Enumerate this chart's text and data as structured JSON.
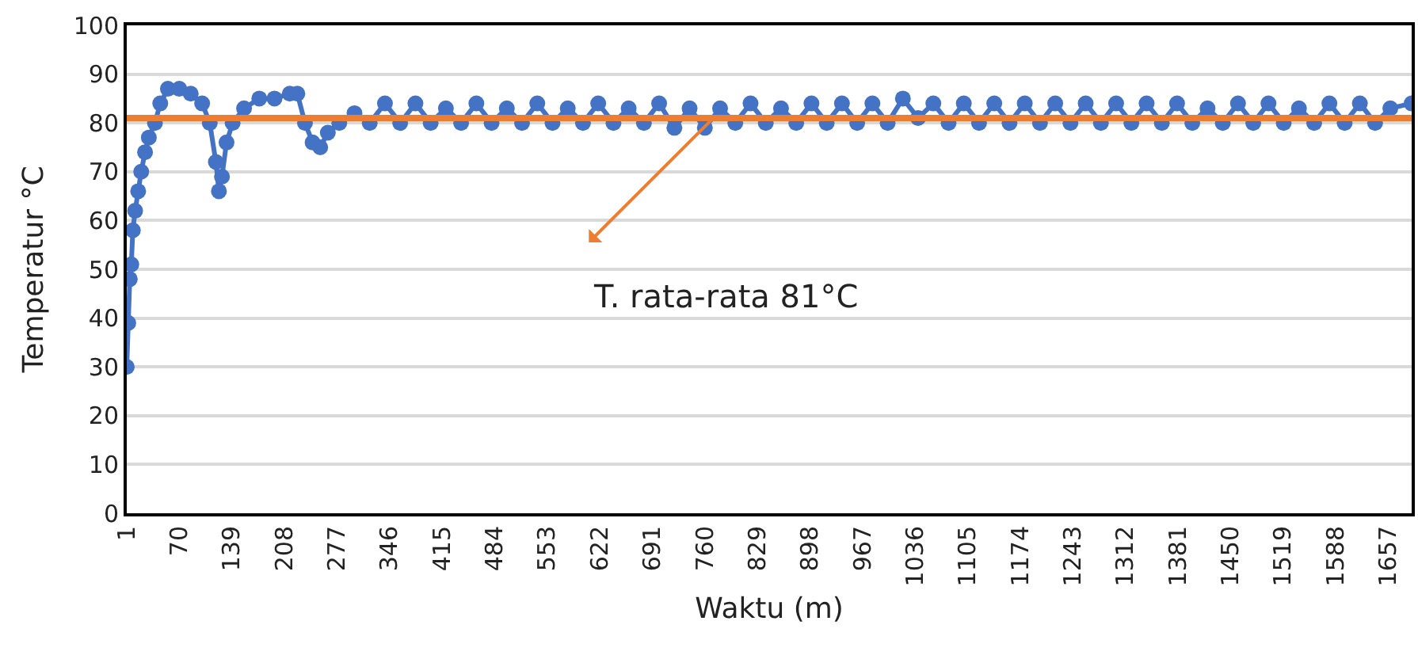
{
  "chart_data": {
    "type": "line",
    "xlabel": "Waktu (m)",
    "ylabel": "Temperatur °C",
    "x": [
      1,
      3,
      5,
      7,
      9,
      12,
      16,
      20,
      25,
      30,
      38,
      45,
      55,
      70,
      85,
      100,
      110,
      118,
      122,
      126,
      132,
      140,
      155,
      175,
      195,
      215,
      225,
      235,
      245,
      255,
      265,
      280,
      300,
      320,
      340,
      360,
      380,
      400,
      420,
      440,
      460,
      480,
      500,
      520,
      540,
      560,
      580,
      600,
      620,
      640,
      660,
      680,
      700,
      720,
      740,
      760,
      780,
      800,
      820,
      840,
      860,
      880,
      900,
      920,
      940,
      960,
      980,
      1000,
      1020,
      1040,
      1060,
      1080,
      1100,
      1120,
      1140,
      1160,
      1180,
      1200,
      1220,
      1240,
      1260,
      1280,
      1300,
      1320,
      1340,
      1360,
      1380,
      1400,
      1420,
      1440,
      1460,
      1480,
      1500,
      1520,
      1540,
      1560,
      1580,
      1600,
      1620,
      1640,
      1660,
      1688
    ],
    "series": [
      {
        "color": "#4472c4",
        "values": [
          30,
          39,
          48,
          51,
          58,
          62,
          66,
          70,
          74,
          77,
          80,
          84,
          87,
          87,
          86,
          84,
          80,
          72,
          66,
          69,
          76,
          80,
          83,
          85,
          85,
          86,
          86,
          80,
          76,
          75,
          78,
          80,
          82,
          80,
          84,
          80,
          84,
          80,
          83,
          80,
          84,
          80,
          83,
          80,
          84,
          80,
          83,
          80,
          84,
          80,
          83,
          80,
          84,
          79,
          83,
          79,
          83,
          80,
          84,
          80,
          83,
          80,
          84,
          80,
          84,
          80,
          84,
          80,
          85,
          81,
          84,
          80,
          84,
          80,
          84,
          80,
          84,
          80,
          84,
          80,
          84,
          80,
          84,
          80,
          84,
          80,
          84,
          80,
          83,
          80,
          84,
          80,
          84,
          80,
          83,
          80,
          84,
          80,
          84,
          80,
          83,
          84
        ]
      }
    ],
    "ref_lines": [
      {
        "axis": "y",
        "value": 81,
        "color": "#ed7d31"
      }
    ],
    "annotations": [
      {
        "text": "T. rata-rata 81°C",
        "x": 771,
        "y": 81
      }
    ],
    "xlim": [
      1,
      1688
    ],
    "xticks": [
      1,
      70,
      139,
      208,
      277,
      346,
      415,
      484,
      553,
      622,
      691,
      760,
      829,
      898,
      967,
      1036,
      1105,
      1174,
      1243,
      1312,
      1381,
      1450,
      1519,
      1588,
      1657
    ],
    "ylim": [
      0,
      100
    ],
    "yticks": [
      0,
      10,
      20,
      30,
      40,
      50,
      60,
      70,
      80,
      90,
      100
    ],
    "grid": "y",
    "marker": "circle",
    "line_style": "solid"
  }
}
